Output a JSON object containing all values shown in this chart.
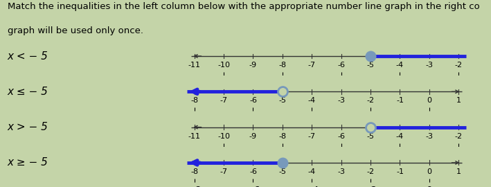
{
  "title_line1": "Match the inequalities in the left column below with the appropriate number line graph in the right co",
  "title_line2": "graph will be used only once.",
  "inequalities": [
    "x < − 5",
    "x ≤ − 5",
    "x > − 5",
    "x ≥ − 5"
  ],
  "graphs": [
    {
      "xmin": -11,
      "xmax": -2,
      "point": -5,
      "filled": true,
      "direction": "right",
      "ticks": [
        -11,
        -10,
        -9,
        -8,
        -7,
        -6,
        -5,
        -4,
        -3,
        -2
      ],
      "arrow_left": true,
      "arrow_right": false
    },
    {
      "xmin": -8,
      "xmax": 1,
      "point": -5,
      "filled": false,
      "direction": "left",
      "ticks": [
        -8,
        -7,
        -6,
        -5,
        -4,
        -3,
        -2,
        -1,
        0,
        1
      ],
      "arrow_left": true,
      "arrow_right": true
    },
    {
      "xmin": -11,
      "xmax": -2,
      "point": -5,
      "filled": false,
      "direction": "right",
      "ticks": [
        -11,
        -10,
        -9,
        -8,
        -7,
        -6,
        -5,
        -4,
        -3,
        -2
      ],
      "arrow_left": true,
      "arrow_right": false
    },
    {
      "xmin": -8,
      "xmax": 1,
      "point": -5,
      "filled": true,
      "direction": "left",
      "ticks": [
        -8,
        -7,
        -6,
        -5,
        -4,
        -3,
        -2,
        -1,
        0,
        1
      ],
      "arrow_left": true,
      "arrow_right": true
    }
  ],
  "line_color": "#2222dd",
  "axis_color": "#333333",
  "filled_dot_color": "#7799bb",
  "open_dot_color": "#7799bb",
  "bg_color": "#c4d4a8",
  "title_fontsize": 9.5,
  "label_fontsize": 11,
  "tick_fontsize": 8
}
